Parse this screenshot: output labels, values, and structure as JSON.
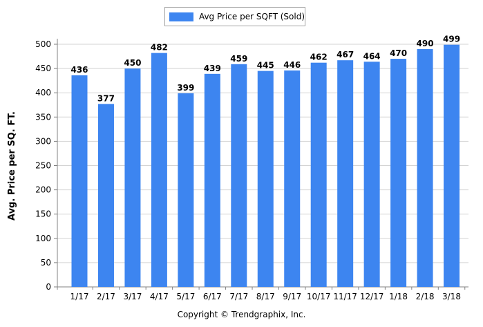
{
  "chart_data": {
    "type": "bar",
    "title": "",
    "xlabel": "",
    "ylabel": "Avg. Price per SQ. FT.",
    "legend": {
      "placement": "top-center",
      "entries": [
        "Avg Price per SQFT (Sold)"
      ]
    },
    "ylim": [
      0,
      500
    ],
    "yticks": [
      0,
      50,
      100,
      150,
      200,
      250,
      300,
      350,
      400,
      450,
      500
    ],
    "grid": true,
    "categories": [
      "1/17",
      "2/17",
      "3/17",
      "4/17",
      "5/17",
      "6/17",
      "7/17",
      "8/17",
      "9/17",
      "10/17",
      "11/17",
      "12/17",
      "1/18",
      "2/18",
      "3/18"
    ],
    "series": [
      {
        "name": "Avg Price per SQFT (Sold)",
        "color": "#3d85f0",
        "values": [
          436,
          377,
          450,
          482,
          399,
          439,
          459,
          445,
          446,
          462,
          467,
          464,
          470,
          490,
          499
        ]
      }
    ]
  },
  "footer": {
    "copyright": "Copyright © Trendgraphix, Inc."
  }
}
